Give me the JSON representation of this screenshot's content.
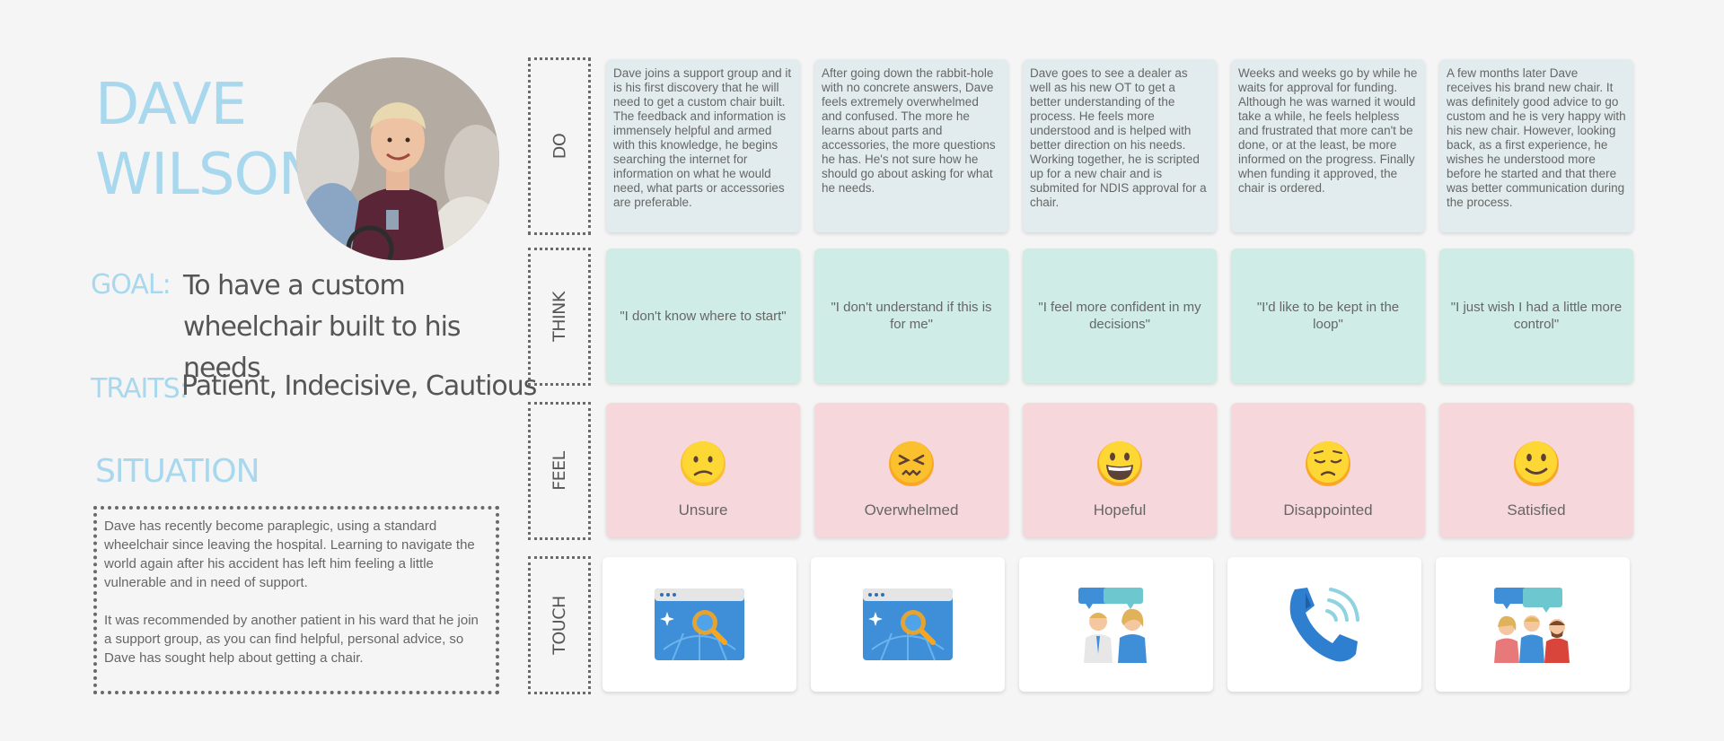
{
  "persona": {
    "first_name": "DAVE",
    "last_name": "WILSON",
    "goal_label": "GOAL:",
    "goal": "To have a custom wheelchair built to his needs",
    "traits_label": "TRAITS:",
    "traits": "Patient, Indecisive, Cautious",
    "situation_title": "SITUATION",
    "situation_p1": "Dave has recently become paraplegic, using a standard wheelchair since leaving the hospital. Learning to navigate the world again after his accident has left him feeling a little vulnerable and in need of support.",
    "situation_p2": "It was recommended by another patient in his ward that he join a support group, as you can find helpful, personal advice, so Dave has sought help about getting a chair."
  },
  "rows": {
    "do": "DO",
    "think": "THINK",
    "feel": "FEEL",
    "touch": "TOUCH"
  },
  "stages": [
    {
      "do": "Dave joins a support group and it is his first discovery that he will need to get a custom chair built. The feedback and information is immensely helpful and armed with this knowledge, he begins searching the internet for information on what he would need, what parts or accessories are preferable.",
      "think": "\"I don't know where to start\"",
      "feel": "Unsure",
      "emotion_icon": "confused-face-icon",
      "touch_icon": "web-search-icon"
    },
    {
      "do": "After going down the rabbit-hole with no concrete answers, Dave feels extremely overwhelmed and confused. The more he learns about parts and accessories, the more questions he has. He's not sure how he should go about asking for what he needs.",
      "think": "\"I don't understand if this is for me\"",
      "feel": "Overwhelmed",
      "emotion_icon": "confounded-face-icon",
      "touch_icon": "web-search-icon"
    },
    {
      "do": "Dave goes to see a dealer as well as his new OT to get a better understanding of the process. He feels more understood and is helped with better direction on his needs. Working together, he is scripted up for a new chair and is submited for NDIS approval for a chair.",
      "think": "\"I feel more confident in my decisions\"",
      "feel": "Hopeful",
      "emotion_icon": "grinning-face-icon",
      "touch_icon": "consultation-icon"
    },
    {
      "do": "Weeks and weeks go by while he waits for approval for funding. Although he was warned it would take a while, he feels helpless and frustrated that more can't be done, or at the least, be more informed on the progress. Finally when funding it approved, the chair is ordered.",
      "think": "\"I'd like to be kept in the loop\"",
      "feel": "Disappointed",
      "emotion_icon": "disappointed-face-icon",
      "touch_icon": "phone-call-icon"
    },
    {
      "do": "A few months later Dave receives his brand new chair. It was definitely good advice to go custom and he is very happy with his new chair. However, looking back, as a first experience, he wishes he understood more before he started and that there was better communication during the process.",
      "think": "\"I just wish I had a little more control\"",
      "feel": "Satisfied",
      "emotion_icon": "smiling-face-icon",
      "touch_icon": "group-discussion-icon"
    }
  ]
}
